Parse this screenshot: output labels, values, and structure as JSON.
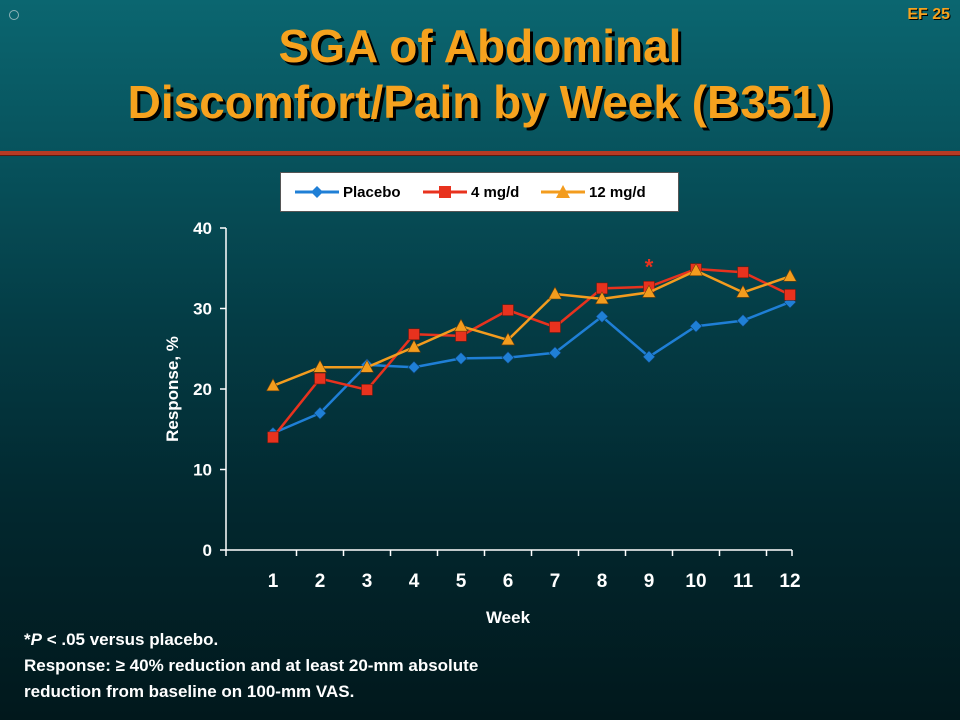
{
  "slide": {
    "id": "EF 25"
  },
  "title": {
    "line1": "SGA of Abdominal",
    "line2": "Discomfort/Pain by Week (B351)"
  },
  "footnote": {
    "line1_prefix": "*",
    "line1_italic": "P",
    "line1_rest": " < .05 versus placebo.",
    "line2": "Response: ≥ 40% reduction and at least 20-mm absolute",
    "line3": "reduction from baseline on 100-mm VAS."
  },
  "chart_data": {
    "type": "line",
    "xlabel": "Week",
    "ylabel": "Response, %",
    "ylim": [
      0,
      40
    ],
    "yticks": [
      0,
      10,
      20,
      30,
      40
    ],
    "categories": [
      "1",
      "2",
      "3",
      "4",
      "5",
      "6",
      "7",
      "8",
      "9",
      "10",
      "11",
      "12"
    ],
    "legend_position": "top",
    "grid": false,
    "series": [
      {
        "name": "Placebo",
        "color": "#1f7fd6",
        "marker": "diamond",
        "values": [
          14.5,
          17.0,
          23.0,
          22.7,
          23.8,
          23.9,
          24.5,
          29.0,
          24.0,
          27.8,
          28.5,
          30.8
        ]
      },
      {
        "name": "4 mg/d",
        "color": "#e8321e",
        "marker": "square",
        "values": [
          14.0,
          21.3,
          19.9,
          26.8,
          26.6,
          29.8,
          27.7,
          32.5,
          32.7,
          34.9,
          34.5,
          31.7
        ]
      },
      {
        "name": "12 mg/d",
        "color": "#f39c1e",
        "marker": "triangle",
        "values": [
          20.4,
          22.7,
          22.7,
          25.2,
          27.8,
          26.1,
          31.8,
          31.2,
          32.0,
          34.7,
          32.0,
          34.0
        ]
      }
    ],
    "annotations": [
      {
        "text": "*",
        "category": "9",
        "value": 35.0
      }
    ]
  }
}
